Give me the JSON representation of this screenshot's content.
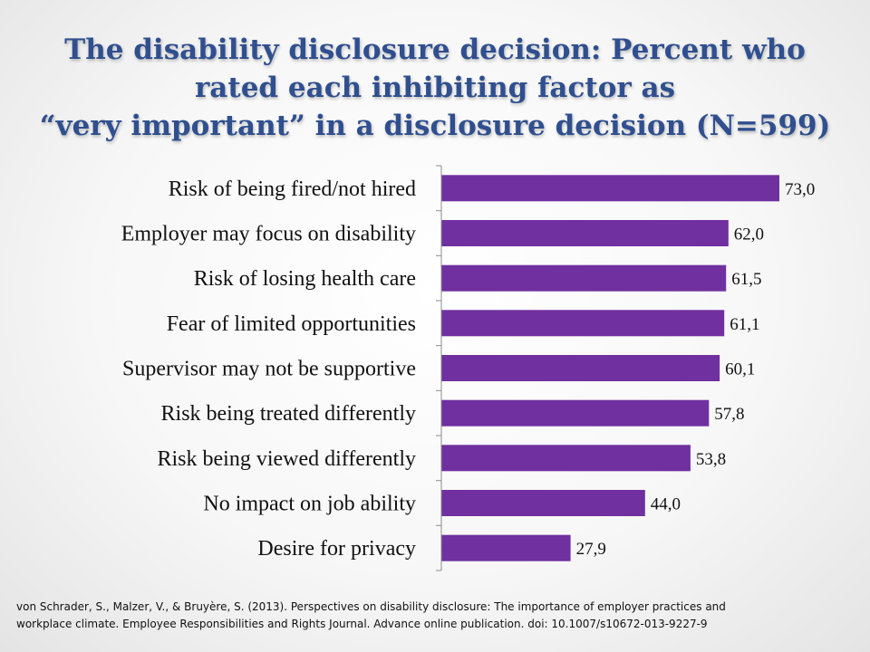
{
  "title_lines": [
    "The disability disclosure decision: Percent who",
    "rated each inhibiting factor as",
    "“very important” in a disclosure decision (N=599)"
  ],
  "chart_data": {
    "type": "bar",
    "orientation": "horizontal",
    "categories": [
      "Risk of being fired/not hired",
      "Employer may focus on disability",
      "Risk of losing health care",
      "Fear of limited opportunities",
      "Supervisor may not be supportive",
      "Risk being treated differently",
      "Risk being viewed differently",
      "No impact on job ability",
      "Desire for privacy"
    ],
    "values": [
      73.0,
      62.0,
      61.5,
      61.1,
      60.1,
      57.8,
      53.8,
      44.0,
      27.9
    ],
    "value_labels": [
      "73,0",
      "62,0",
      "61,5",
      "61,1",
      "60,1",
      "57,8",
      "53,8",
      "44,0",
      "27,9"
    ],
    "xlim": [
      0,
      73
    ],
    "grid": false,
    "legend": "none",
    "bar_color": "#7030a0",
    "title": "",
    "xlabel": "",
    "ylabel": ""
  },
  "citation_lines": [
    "von Schrader, S., Malzer, V., & Bruyère, S. (2013).  Perspectives on disability disclosure: The importance of employer practices and",
    "workplace climate.  Employee Responsibilities and Rights Journal.  Advance online publication.  doi: 10.1007/s10672-013-9227-9"
  ]
}
